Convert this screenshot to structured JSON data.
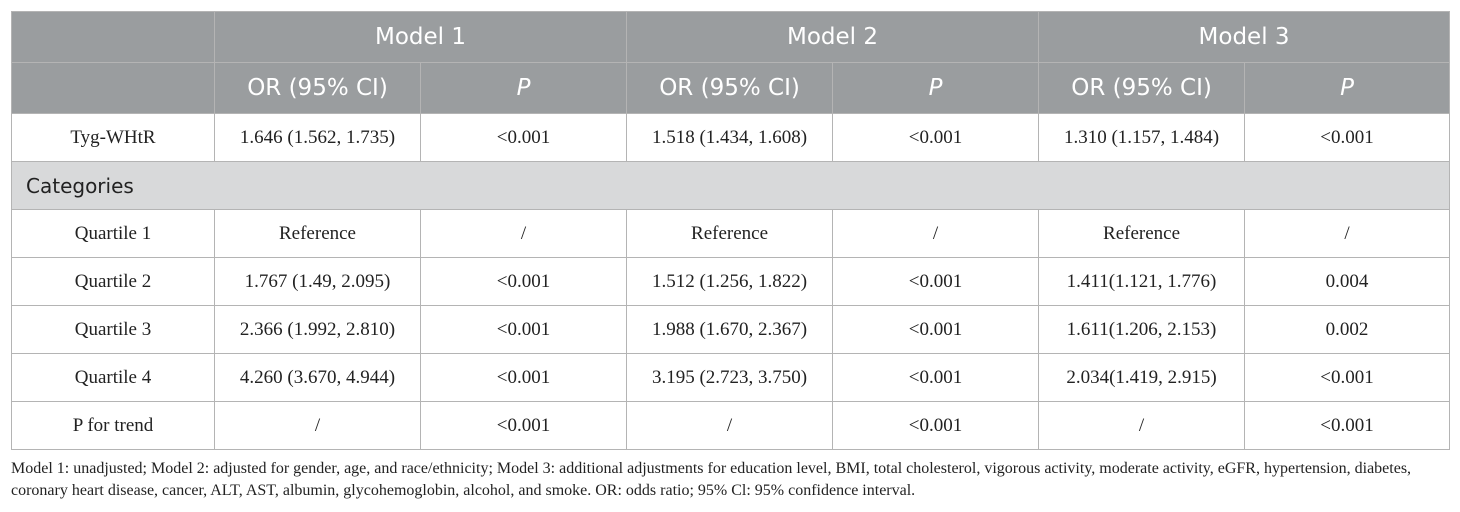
{
  "header": {
    "corner": "",
    "models": [
      "Model 1",
      "Model 2",
      "Model 3"
    ],
    "or_label": "OR (95% CI)",
    "p_label": "P"
  },
  "rows_top": [
    {
      "label": "Tyg-WHtR",
      "m1_or": "1.646 (1.562, 1.735)",
      "m1_p": "<0.001",
      "m2_or": "1.518 (1.434, 1.608)",
      "m2_p": "<0.001",
      "m3_or": "1.310 (1.157, 1.484)",
      "m3_p": "<0.001"
    }
  ],
  "categories_label": "Categories",
  "rows": [
    {
      "label": "Quartile 1",
      "m1_or": "Reference",
      "m1_p": "/",
      "m2_or": "Reference",
      "m2_p": "/",
      "m3_or": "Reference",
      "m3_p": "/"
    },
    {
      "label": "Quartile 2",
      "m1_or": "1.767 (1.49, 2.095)",
      "m1_p": "<0.001",
      "m2_or": "1.512 (1.256, 1.822)",
      "m2_p": "<0.001",
      "m3_or": "1.411(1.121, 1.776)",
      "m3_p": "0.004"
    },
    {
      "label": "Quartile 3",
      "m1_or": "2.366 (1.992, 2.810)",
      "m1_p": "<0.001",
      "m2_or": "1.988 (1.670, 2.367)",
      "m2_p": "<0.001",
      "m3_or": "1.611(1.206, 2.153)",
      "m3_p": "0.002"
    },
    {
      "label": "Quartile 4",
      "m1_or": "4.260 (3.670, 4.944)",
      "m1_p": "<0.001",
      "m2_or": "3.195 (2.723, 3.750)",
      "m2_p": "<0.001",
      "m3_or": "2.034(1.419, 2.915)",
      "m3_p": "<0.001"
    },
    {
      "label": "P for trend",
      "m1_or": "/",
      "m1_p": "<0.001",
      "m2_or": "/",
      "m2_p": "<0.001",
      "m3_or": "/",
      "m3_p": "<0.001"
    }
  ],
  "footnote": "Model 1: unadjusted; Model 2: adjusted for gender, age, and race/ethnicity; Model 3: additional adjustments for education level, BMI, total cholesterol, vigorous activity, moderate activity, eGFR, hypertension, diabetes, coronary heart disease, cancer, ALT, AST, albumin, glycohemoglobin, alcohol, and smoke. OR: odds ratio; 95% Cl: 95% confidence interval."
}
